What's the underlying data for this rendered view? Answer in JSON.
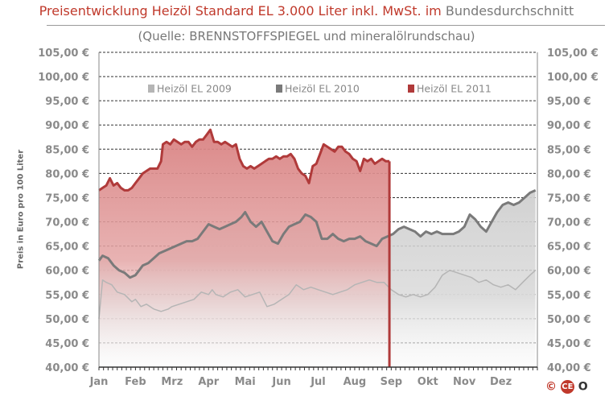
{
  "header": {
    "title_main": "Preisentwicklung Heizöl Standard EL 3.000 Liter inkl. MwSt. im",
    "title_tail": "Bundesdurchschnitt",
    "subtitle": "(Quelle: BRENNSTOFFSPIEGEL  und mineralölrundschau)"
  },
  "logo": {
    "copyright": "©",
    "mark": "CE",
    "suffix": "O"
  },
  "chart_data": {
    "type": "area",
    "ylabel": "Preis in Euro pro 100 Liter",
    "ylim": [
      40,
      105
    ],
    "y_ticks": [
      40,
      45,
      50,
      55,
      60,
      65,
      70,
      75,
      80,
      85,
      90,
      95,
      100,
      105
    ],
    "y_tick_labels": [
      "40,00 €",
      "45,00 €",
      "50,00 €",
      "55,00 €",
      "60,00 €",
      "65,00 €",
      "70,00 €",
      "75,00 €",
      "80,00 €",
      "85,00 €",
      "90,00 €",
      "95,00 €",
      "100,00 €",
      "105,00 €"
    ],
    "categories": [
      "Jan",
      "Feb",
      "Mrz",
      "Apr",
      "Mai",
      "Jun",
      "Jul",
      "Aug",
      "Sep",
      "Okt",
      "Nov",
      "Dez"
    ],
    "grid": "horizontal dashed",
    "legend_position": "top",
    "series": [
      {
        "name": "Heizöl EL 2009",
        "color": "#b5b5b5",
        "x": [
          0,
          0.1,
          0.2,
          0.35,
          0.5,
          0.7,
          0.9,
          1.0,
          1.15,
          1.3,
          1.5,
          1.7,
          1.9,
          2.0,
          2.2,
          2.4,
          2.6,
          2.8,
          3.0,
          3.1,
          3.2,
          3.4,
          3.6,
          3.8,
          4.0,
          4.2,
          4.4,
          4.6,
          4.8,
          5.0,
          5.2,
          5.4,
          5.6,
          5.8,
          6.0,
          6.2,
          6.4,
          6.6,
          6.8,
          7.0,
          7.2,
          7.4,
          7.6,
          7.8,
          8.0,
          8.2,
          8.4,
          8.6,
          8.8,
          9.0,
          9.2,
          9.4,
          9.6,
          9.8,
          10.0,
          10.2,
          10.4,
          10.6,
          10.8,
          11.0,
          11.2,
          11.4,
          11.6,
          11.8,
          11.95
        ],
        "values": [
          50,
          58,
          57.5,
          57,
          55.5,
          55,
          53.5,
          54,
          52.5,
          53,
          52,
          51.5,
          52,
          52.5,
          53,
          53.5,
          54,
          55.5,
          55,
          56,
          55,
          54.5,
          55.5,
          56,
          54.5,
          55,
          55.5,
          52.5,
          53,
          54,
          55,
          57,
          56,
          56.5,
          56,
          55.5,
          55,
          55.5,
          56,
          57,
          57.5,
          58,
          57.5,
          57.5,
          56,
          55,
          54.5,
          55,
          54.5,
          55,
          56.5,
          59,
          60,
          59.5,
          59,
          58.5,
          57.5,
          58,
          57,
          56.5,
          57,
          56,
          57.5,
          59,
          60
        ]
      },
      {
        "name": "Heizöl EL 2010",
        "color": "#7a7a7a",
        "x": [
          0,
          0.1,
          0.25,
          0.4,
          0.55,
          0.7,
          0.85,
          1.0,
          1.1,
          1.2,
          1.35,
          1.5,
          1.65,
          1.8,
          1.95,
          2.1,
          2.25,
          2.4,
          2.55,
          2.7,
          2.85,
          3.0,
          3.15,
          3.3,
          3.45,
          3.6,
          3.75,
          3.9,
          4.0,
          4.15,
          4.3,
          4.45,
          4.6,
          4.75,
          4.9,
          5.05,
          5.2,
          5.35,
          5.5,
          5.65,
          5.8,
          5.95,
          6.1,
          6.25,
          6.4,
          6.55,
          6.7,
          6.85,
          7.0,
          7.15,
          7.3,
          7.45,
          7.6,
          7.75,
          7.9,
          8.05,
          8.2,
          8.35,
          8.5,
          8.65,
          8.8,
          8.95,
          9.1,
          9.25,
          9.4,
          9.55,
          9.7,
          9.85,
          10.0,
          10.15,
          10.3,
          10.45,
          10.6,
          10.75,
          10.9,
          11.05,
          11.2,
          11.35,
          11.5,
          11.65,
          11.8,
          11.95
        ],
        "values": [
          62,
          63,
          62.5,
          61,
          60,
          59.5,
          58.5,
          59,
          60,
          61,
          61.5,
          62.5,
          63.5,
          64,
          64.5,
          65,
          65.5,
          66,
          66,
          66.5,
          68,
          69.5,
          69,
          68.5,
          69,
          69.5,
          70,
          71,
          72,
          70,
          69,
          70,
          68,
          66,
          65.5,
          67.5,
          69,
          69.5,
          70,
          71.5,
          71,
          70,
          66.5,
          66.5,
          67.5,
          66.5,
          66,
          66.5,
          66.5,
          67,
          66,
          65.5,
          65,
          66.5,
          67,
          67.5,
          68.5,
          69,
          68.5,
          68,
          67,
          68,
          67.5,
          68,
          67.5,
          67.5,
          67.5,
          68,
          69,
          71.5,
          70.5,
          69,
          68,
          70,
          72,
          73.5,
          74,
          73.5,
          74,
          75,
          76,
          76.5
        ]
      },
      {
        "name": "Heizöl EL 2011",
        "color": "#b03a3a",
        "x": [
          0,
          0.1,
          0.2,
          0.3,
          0.4,
          0.5,
          0.6,
          0.7,
          0.8,
          0.9,
          1.0,
          1.1,
          1.2,
          1.3,
          1.4,
          1.5,
          1.6,
          1.7,
          1.75,
          1.85,
          1.95,
          2.05,
          2.15,
          2.25,
          2.35,
          2.45,
          2.55,
          2.65,
          2.75,
          2.85,
          2.95,
          3.05,
          3.15,
          3.25,
          3.35,
          3.45,
          3.55,
          3.65,
          3.75,
          3.85,
          3.95,
          4.05,
          4.15,
          4.25,
          4.35,
          4.45,
          4.55,
          4.65,
          4.75,
          4.85,
          4.95,
          5.05,
          5.15,
          5.25,
          5.35,
          5.45,
          5.55,
          5.65,
          5.75,
          5.85,
          5.95,
          6.05,
          6.15,
          6.25,
          6.35,
          6.45,
          6.55,
          6.65,
          6.75,
          6.85,
          6.95,
          7.05,
          7.15,
          7.25,
          7.35,
          7.45,
          7.55,
          7.65,
          7.75,
          7.85,
          7.95
        ],
        "values": [
          76.5,
          77,
          77.5,
          79,
          77.5,
          78,
          77,
          76.5,
          76.5,
          77,
          78,
          79,
          80,
          80.5,
          81,
          81,
          81,
          82.5,
          86,
          86.5,
          86,
          87,
          86.5,
          86,
          86.5,
          86.5,
          85.5,
          86.5,
          87,
          87,
          88,
          89,
          86.5,
          86.5,
          86,
          86.5,
          86,
          85.5,
          86,
          83,
          81.5,
          81,
          81.5,
          81,
          81.5,
          82,
          82.5,
          83,
          83,
          83.5,
          83,
          83.5,
          83.5,
          84,
          83,
          81,
          80,
          79.5,
          78,
          81.5,
          82,
          84,
          86,
          85.5,
          85,
          84.5,
          85.5,
          85.5,
          84.5,
          84,
          83,
          82.5,
          80.5,
          83,
          82.5,
          83,
          82,
          82.5,
          83,
          82.5,
          82.5
        ]
      }
    ]
  }
}
